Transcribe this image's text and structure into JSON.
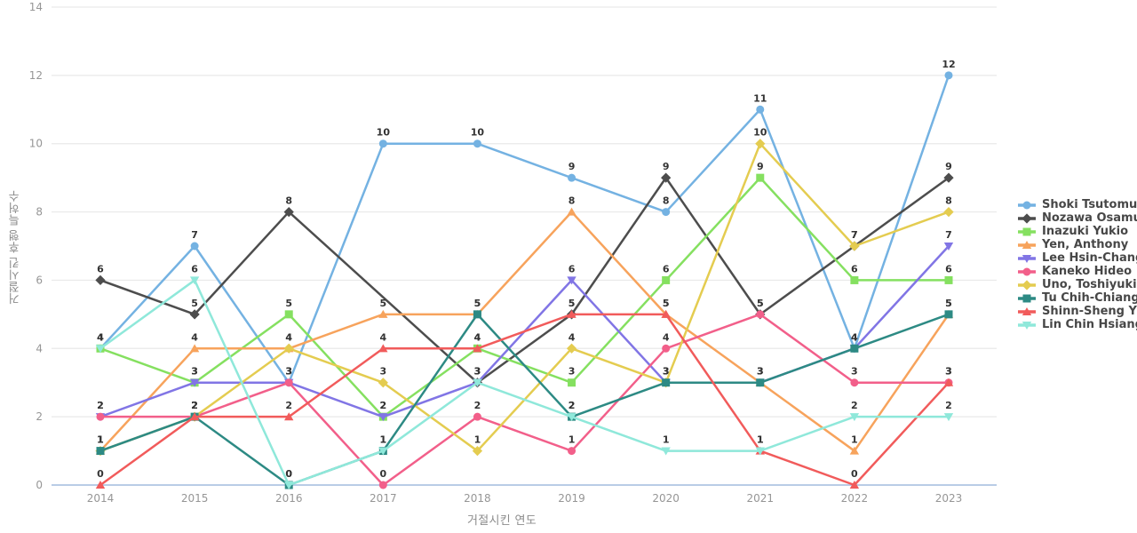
{
  "chart_data": {
    "type": "line",
    "title": "",
    "xlabel": "거절시킨 연도",
    "ylabel": "거절시킨 후행 특허수",
    "x": [
      "2014",
      "2015",
      "2016",
      "2017",
      "2018",
      "2019",
      "2020",
      "2021",
      "2022",
      "2023"
    ],
    "ylim": [
      0,
      14
    ],
    "yticks": [
      0,
      2,
      4,
      6,
      8,
      10,
      12,
      14
    ],
    "grid": "horizontal",
    "legend_position": "right",
    "point_labels": "shown above every marker",
    "series": [
      {
        "name": "Shoki Tsutomu",
        "color": "#74b2e2",
        "marker": "circle",
        "values": [
          4,
          7,
          3,
          10,
          10,
          9,
          8,
          11,
          4,
          12
        ]
      },
      {
        "name": "Nozawa Osamu",
        "color": "#4d4d4d",
        "marker": "diamond",
        "values": [
          6,
          5,
          8,
          null,
          3,
          5,
          9,
          5,
          7,
          9
        ]
      },
      {
        "name": "Inazuki Yukio",
        "color": "#85e060",
        "marker": "square",
        "values": [
          4,
          3,
          5,
          2,
          4,
          3,
          6,
          9,
          6,
          6
        ]
      },
      {
        "name": "Yen, Anthony",
        "color": "#f7a35c",
        "marker": "triangle-up",
        "values": [
          1,
          4,
          4,
          5,
          5,
          8,
          5,
          3,
          1,
          5
        ]
      },
      {
        "name": "Lee Hsin-Chang",
        "color": "#8175e5",
        "marker": "triangle-down",
        "values": [
          2,
          3,
          3,
          2,
          3,
          6,
          3,
          3,
          4,
          7
        ]
      },
      {
        "name": "Kaneko Hideo",
        "color": "#f25f8a",
        "marker": "circle",
        "values": [
          2,
          2,
          3,
          0,
          2,
          1,
          4,
          5,
          3,
          3
        ]
      },
      {
        "name": "Uno, Toshiyuki",
        "color": "#e4cc50",
        "marker": "diamond",
        "values": [
          1,
          2,
          4,
          3,
          1,
          4,
          3,
          10,
          7,
          8
        ]
      },
      {
        "name": "Tu Chih-Chiang",
        "color": "#2d8a84",
        "marker": "square",
        "values": [
          1,
          2,
          0,
          1,
          5,
          2,
          3,
          3,
          4,
          5
        ]
      },
      {
        "name": "Shinn-Sheng Yu",
        "color": "#f15b5b",
        "marker": "triangle-up",
        "values": [
          0,
          2,
          2,
          4,
          4,
          5,
          5,
          1,
          0,
          3
        ]
      },
      {
        "name": "Lin Chin Hsiang",
        "color": "#8fe8da",
        "marker": "triangle-down",
        "values": [
          4,
          6,
          0,
          1,
          3,
          2,
          1,
          1,
          2,
          2
        ]
      }
    ],
    "style": {
      "background": "#ffffff",
      "grid_color": "#e9e9e9",
      "zero_line_color": "#b9cce6",
      "tick_label_color": "#969696",
      "axis_title_color": "#8c8c8c",
      "point_label_color": "#333333",
      "legend_text_color": "#474747"
    }
  }
}
